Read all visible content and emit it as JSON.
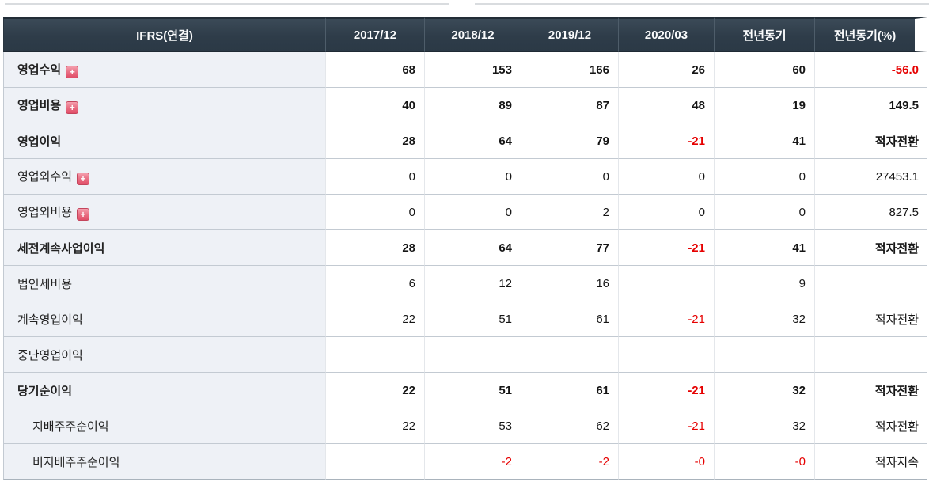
{
  "colors": {
    "negative_red": "#e60000",
    "header_bg": "#2f3d4a",
    "header_text": "#fafbfc",
    "label_cell_bg": "#eef1f6",
    "row_border": "#c3cad2",
    "expand_icon_bg": "#e14e68"
  },
  "table": {
    "expand_icon_glyph": "+",
    "header": {
      "label": "IFRS(연결)",
      "columns": [
        "2017/12",
        "2018/12",
        "2019/12",
        "2020/03",
        "전년동기",
        "전년동기(%)"
      ]
    },
    "rows": [
      {
        "label": "영업수익",
        "bold": true,
        "expand": true,
        "indent": false,
        "values": [
          "68",
          "153",
          "166",
          "26",
          "60",
          "-56.0"
        ]
      },
      {
        "label": "영업비용",
        "bold": true,
        "expand": true,
        "indent": false,
        "values": [
          "40",
          "89",
          "87",
          "48",
          "19",
          "149.5"
        ]
      },
      {
        "label": "영업이익",
        "bold": true,
        "expand": false,
        "indent": false,
        "values": [
          "28",
          "64",
          "79",
          "-21",
          "41",
          "적자전환"
        ]
      },
      {
        "label": "영업외수익",
        "bold": false,
        "expand": true,
        "indent": false,
        "values": [
          "0",
          "0",
          "0",
          "0",
          "0",
          "27453.1"
        ]
      },
      {
        "label": "영업외비용",
        "bold": false,
        "expand": true,
        "indent": false,
        "values": [
          "0",
          "0",
          "2",
          "0",
          "0",
          "827.5"
        ]
      },
      {
        "label": "세전계속사업이익",
        "bold": true,
        "expand": false,
        "indent": false,
        "values": [
          "28",
          "64",
          "77",
          "-21",
          "41",
          "적자전환"
        ]
      },
      {
        "label": "법인세비용",
        "bold": false,
        "expand": false,
        "indent": false,
        "values": [
          "6",
          "12",
          "16",
          "",
          "9",
          ""
        ]
      },
      {
        "label": "계속영업이익",
        "bold": false,
        "expand": false,
        "indent": false,
        "values": [
          "22",
          "51",
          "61",
          "-21",
          "32",
          "적자전환"
        ]
      },
      {
        "label": "중단영업이익",
        "bold": false,
        "expand": false,
        "indent": false,
        "values": [
          "",
          "",
          "",
          "",
          "",
          ""
        ]
      },
      {
        "label": "당기순이익",
        "bold": true,
        "expand": false,
        "indent": false,
        "values": [
          "22",
          "51",
          "61",
          "-21",
          "32",
          "적자전환"
        ]
      },
      {
        "label": "지배주주순이익",
        "bold": false,
        "expand": false,
        "indent": true,
        "values": [
          "22",
          "53",
          "62",
          "-21",
          "32",
          "적자전환"
        ]
      },
      {
        "label": "비지배주주순이익",
        "bold": false,
        "expand": false,
        "indent": true,
        "values": [
          "",
          "-2",
          "-2",
          "-0",
          "-0",
          "적자지속"
        ]
      }
    ]
  }
}
